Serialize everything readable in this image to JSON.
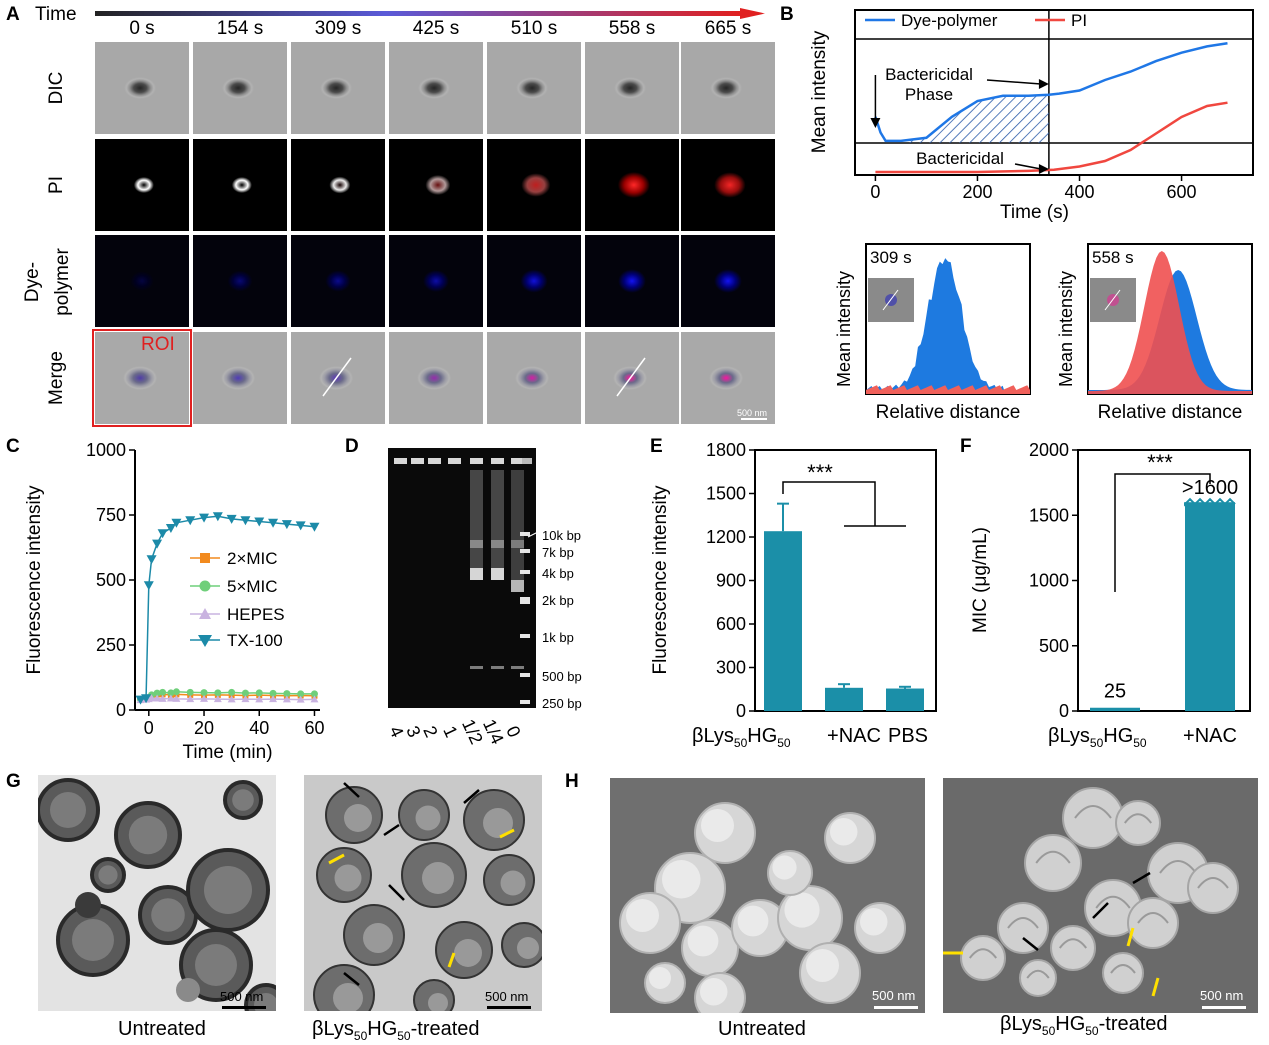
{
  "panels": {
    "A": {
      "label": "A",
      "time_title": "Time",
      "times": [
        "0 s",
        "154 s",
        "309 s",
        "425 s",
        "510 s",
        "558 s",
        "665 s"
      ],
      "rows": [
        "DIC",
        "PI",
        "Dye-\npolymer",
        "Merge"
      ],
      "row_dye_1": "Dye-",
      "row_dye_2": "polymer",
      "roi": "ROI",
      "scale": "500 nm",
      "pi_intensity": [
        0,
        0,
        0.08,
        0.4,
        0.75,
        1.0,
        0.95
      ],
      "dye_intensity": [
        0.25,
        0.45,
        0.55,
        0.65,
        0.85,
        0.95,
        0.95
      ]
    },
    "B": {
      "label": "B",
      "legend": [
        "Dye-polymer",
        "PI"
      ],
      "colors": {
        "dye": "#1f77e6",
        "pi": "#f0473f",
        "hatch": "#2a5aa8"
      },
      "ylabel": "Mean intensity",
      "xlabel": "Time (s)",
      "annotation1_line1": "Bactericidal",
      "annotation1_line2": "Phase",
      "annotation2": "Bactericidal",
      "xticks": [
        "0",
        "200",
        "400",
        "600"
      ],
      "inset1_time": "309 s",
      "inset2_time": "558 s",
      "inset_ylabel": "Mean intensity",
      "inset_xlabel": "Relative distance"
    },
    "C": {
      "label": "C",
      "ylabel": "Fluorescence intensity",
      "xlabel": "Time (min)",
      "yticks": [
        "0",
        "250",
        "500",
        "750",
        "1000"
      ],
      "xticks": [
        "0",
        "20",
        "40",
        "60"
      ],
      "legend": [
        "2×MIC",
        "5×MIC",
        "HEPES",
        "TX-100"
      ],
      "colors": [
        "#f28a1e",
        "#6fcf7a",
        "#c9b3e0",
        "#1c8aa8"
      ]
    },
    "D": {
      "label": "D",
      "ladder": [
        "10k bp",
        "7k bp",
        "4k bp",
        "2k bp",
        "1k bp",
        "500 bp",
        "250 bp"
      ],
      "lanes": [
        "4",
        "3",
        "2",
        "1",
        "1/2",
        "1/4",
        "0"
      ]
    },
    "E": {
      "label": "E",
      "ylabel": "Fluorescence intensity",
      "yticks": [
        "0",
        "300",
        "600",
        "900",
        "1200",
        "1500",
        "1800"
      ],
      "sig": "***",
      "cat1_main": "βLys",
      "cat1_sub1": "50",
      "cat1_mid": "HG",
      "cat1_sub2": "50",
      "cat2": "+NAC",
      "cat3": "PBS"
    },
    "F": {
      "label": "F",
      "ylabel": "MIC (μg/mL)",
      "yticks": [
        "0",
        "500",
        "1000",
        "1500",
        "2000"
      ],
      "sig": "***",
      "val1": "25",
      "val2": ">1600",
      "cat1_main": "βLys",
      "cat1_sub1": "50",
      "cat1_mid": "HG",
      "cat1_sub2": "50",
      "cat2": "+NAC"
    },
    "G": {
      "label": "G",
      "left_caption": "Untreated",
      "right_caption_main": "βLys",
      "right_caption_sub1": "50",
      "right_caption_mid": "HG",
      "right_caption_sub2": "50",
      "right_caption_end": "-treated",
      "scale": "500 nm"
    },
    "H": {
      "label": "H",
      "left_caption": "Untreated",
      "right_caption_main": "βLys",
      "right_caption_sub1": "50",
      "right_caption_mid": "HG",
      "right_caption_sub2": "50",
      "right_caption_end": "-treated",
      "scale": "500 nm"
    }
  },
  "chart_data": [
    {
      "type": "line",
      "panel": "B",
      "xlabel": "Time (s)",
      "ylabel": "Mean intensity",
      "xlim": [
        -40,
        740
      ],
      "series": [
        {
          "name": "Dye-polymer",
          "x": [
            0,
            10,
            20,
            50,
            100,
            150,
            200,
            250,
            300,
            340,
            360,
            400,
            450,
            500,
            550,
            600,
            650,
            690
          ],
          "y": [
            0.25,
            0.1,
            0.02,
            0.02,
            0.05,
            0.25,
            0.4,
            0.45,
            0.45,
            0.46,
            0.47,
            0.5,
            0.6,
            0.68,
            0.78,
            0.86,
            0.92,
            0.95
          ]
        },
        {
          "name": "PI",
          "x": [
            0,
            100,
            200,
            300,
            350,
            400,
            450,
            500,
            550,
            600,
            650,
            690
          ],
          "y": [
            -0.3,
            -0.3,
            -0.3,
            -0.29,
            -0.28,
            -0.25,
            -0.2,
            -0.1,
            0.05,
            0.2,
            0.3,
            0.33
          ]
        }
      ]
    },
    {
      "type": "line",
      "panel": "C",
      "xlabel": "Time (min)",
      "ylabel": "Fluorescence intensity",
      "ylim": [
        0,
        1000
      ],
      "x": [
        -3,
        -1,
        0,
        1,
        3,
        5,
        8,
        10,
        15,
        20,
        25,
        30,
        35,
        40,
        45,
        50,
        55,
        60
      ],
      "series": [
        {
          "name": "2×MIC",
          "values": [
            40,
            42,
            45,
            55,
            60,
            60,
            58,
            60,
            58,
            57,
            58,
            57,
            56,
            57,
            56,
            55,
            56,
            55
          ]
        },
        {
          "name": "5×MIC",
          "values": [
            40,
            43,
            48,
            58,
            65,
            68,
            66,
            70,
            68,
            67,
            66,
            68,
            65,
            66,
            64,
            63,
            62,
            62
          ]
        },
        {
          "name": "HEPES",
          "values": [
            38,
            40,
            42,
            45,
            44,
            43,
            44,
            43,
            42,
            43,
            42,
            41,
            42,
            41,
            42,
            41,
            40,
            41
          ]
        },
        {
          "name": "TX-100",
          "values": [
            40,
            45,
            480,
            580,
            640,
            680,
            700,
            720,
            730,
            740,
            745,
            735,
            730,
            725,
            720,
            715,
            710,
            705
          ]
        }
      ]
    },
    {
      "type": "bar",
      "panel": "E",
      "ylabel": "Fluorescence intensity",
      "ylim": [
        0,
        1800
      ],
      "categories": [
        "βLys50HG50",
        "+NAC",
        "PBS"
      ],
      "values": [
        1240,
        160,
        155
      ],
      "errors": [
        190,
        25,
        12
      ]
    },
    {
      "type": "bar",
      "panel": "F",
      "ylabel": "MIC (μg/mL)",
      "ylim": [
        0,
        2000
      ],
      "categories": [
        "βLys50HG50",
        "+NAC"
      ],
      "values": [
        25,
        1600
      ]
    }
  ]
}
